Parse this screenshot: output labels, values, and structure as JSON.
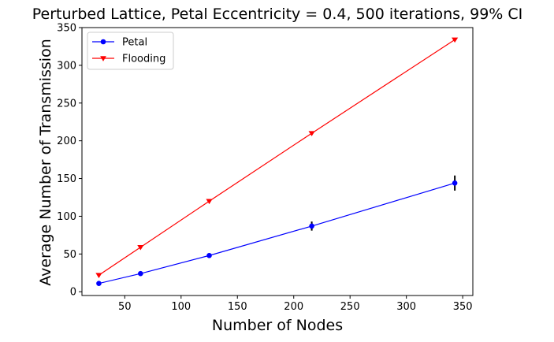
{
  "chart_data": {
    "type": "line",
    "title": "Perturbed Lattice, Petal Eccentricity = 0.4, 500 iterations, 99% CI",
    "xlabel": "Number of Nodes",
    "ylabel": "Average Number of Transmission",
    "xlim": [
      12,
      359
    ],
    "ylim": [
      -5,
      350
    ],
    "xticks": [
      50,
      100,
      150,
      200,
      250,
      300,
      350
    ],
    "yticks": [
      0,
      50,
      100,
      150,
      200,
      250,
      300,
      350
    ],
    "grid": false,
    "legend_position": "upper left",
    "series": [
      {
        "name": "Petal",
        "color": "#0000ff",
        "marker": "circle",
        "x": [
          27,
          64,
          125,
          216,
          343
        ],
        "y": [
          11,
          24,
          48,
          87,
          144
        ],
        "error": [
          0.6,
          0.8,
          3,
          6,
          10
        ]
      },
      {
        "name": "Flooding",
        "color": "#ff0000",
        "marker": "triangle-down",
        "x": [
          27,
          64,
          125,
          216,
          343
        ],
        "y": [
          22,
          59,
          120,
          210,
          334
        ],
        "error": [
          0,
          0,
          0,
          0,
          0
        ]
      }
    ]
  }
}
